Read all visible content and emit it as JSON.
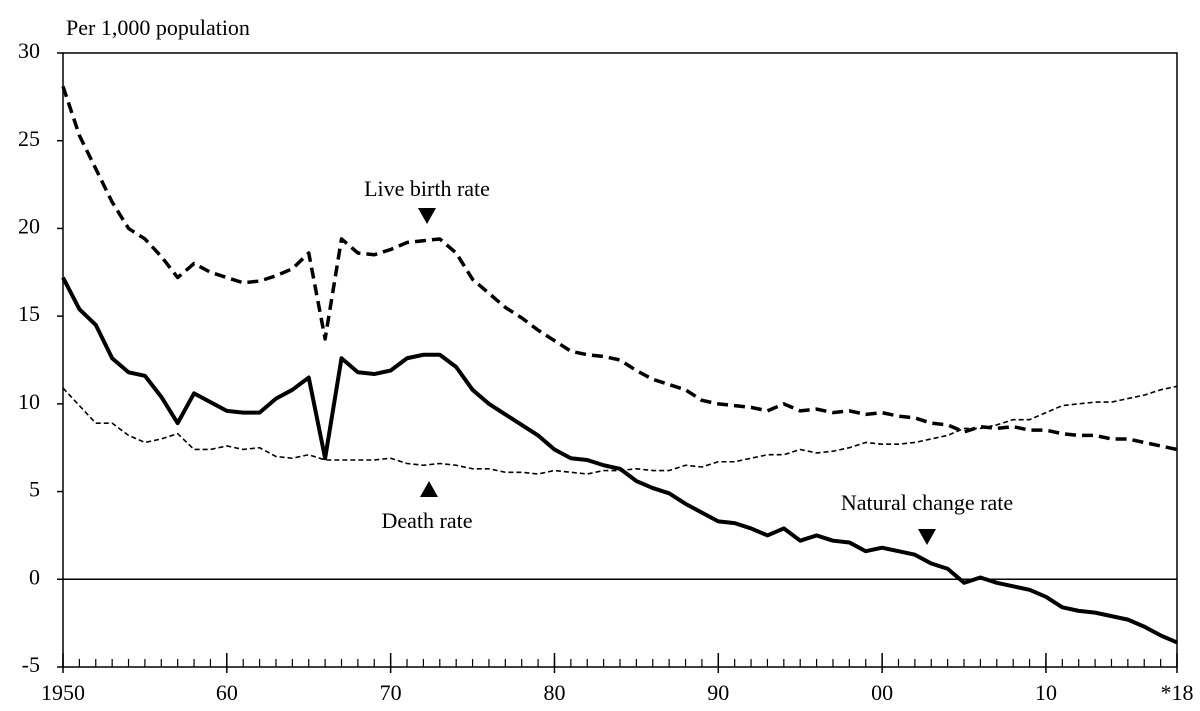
{
  "chart_data": {
    "type": "line",
    "ylabel": "Per 1,000 population",
    "x": [
      1950,
      1951,
      1952,
      1953,
      1954,
      1955,
      1956,
      1957,
      1958,
      1959,
      1960,
      1961,
      1962,
      1963,
      1964,
      1965,
      1966,
      1967,
      1968,
      1969,
      1970,
      1971,
      1972,
      1973,
      1974,
      1975,
      1976,
      1977,
      1978,
      1979,
      1980,
      1981,
      1982,
      1983,
      1984,
      1985,
      1986,
      1987,
      1988,
      1989,
      1990,
      1991,
      1992,
      1993,
      1994,
      1995,
      1996,
      1997,
      1998,
      1999,
      2000,
      2001,
      2002,
      2003,
      2004,
      2005,
      2006,
      2007,
      2008,
      2009,
      2010,
      2011,
      2012,
      2013,
      2014,
      2015,
      2016,
      2017,
      2018
    ],
    "series": [
      {
        "name": "Live birth rate",
        "color": "#000000",
        "line_style": "dashed",
        "values": [
          28.1,
          25.3,
          23.4,
          21.5,
          20.0,
          19.4,
          18.4,
          17.2,
          18.0,
          17.5,
          17.2,
          16.9,
          17.0,
          17.3,
          17.7,
          18.6,
          13.7,
          19.4,
          18.6,
          18.5,
          18.8,
          19.2,
          19.3,
          19.4,
          18.6,
          17.1,
          16.3,
          15.5,
          14.9,
          14.2,
          13.6,
          13.0,
          12.8,
          12.7,
          12.5,
          11.9,
          11.4,
          11.1,
          10.8,
          10.2,
          10.0,
          9.9,
          9.8,
          9.6,
          10.0,
          9.6,
          9.7,
          9.5,
          9.6,
          9.4,
          9.5,
          9.3,
          9.2,
          8.9,
          8.8,
          8.4,
          8.7,
          8.6,
          8.7,
          8.5,
          8.5,
          8.3,
          8.2,
          8.2,
          8.0,
          8.0,
          7.8,
          7.6,
          7.4
        ]
      },
      {
        "name": "Death rate",
        "color": "#000000",
        "line_style": "dotted",
        "values": [
          10.9,
          9.9,
          8.9,
          8.9,
          8.2,
          7.8,
          8.0,
          8.3,
          7.4,
          7.4,
          7.6,
          7.4,
          7.5,
          7.0,
          6.9,
          7.1,
          6.8,
          6.8,
          6.8,
          6.8,
          6.9,
          6.6,
          6.5,
          6.6,
          6.5,
          6.3,
          6.3,
          6.1,
          6.1,
          6.0,
          6.2,
          6.1,
          6.0,
          6.2,
          6.2,
          6.3,
          6.2,
          6.2,
          6.5,
          6.4,
          6.7,
          6.7,
          6.9,
          7.1,
          7.1,
          7.4,
          7.2,
          7.3,
          7.5,
          7.8,
          7.7,
          7.7,
          7.8,
          8.0,
          8.2,
          8.6,
          8.6,
          8.8,
          9.1,
          9.1,
          9.5,
          9.9,
          10.0,
          10.1,
          10.1,
          10.3,
          10.5,
          10.8,
          11.0
        ]
      },
      {
        "name": "Natural change rate",
        "color": "#000000",
        "line_style": "solid",
        "values": [
          17.2,
          15.4,
          14.5,
          12.6,
          11.8,
          11.6,
          10.4,
          8.9,
          10.6,
          10.1,
          9.6,
          9.5,
          9.5,
          10.3,
          10.8,
          11.5,
          6.9,
          12.6,
          11.8,
          11.7,
          11.9,
          12.6,
          12.8,
          12.8,
          12.1,
          10.8,
          10.0,
          9.4,
          8.8,
          8.2,
          7.4,
          6.9,
          6.8,
          6.5,
          6.3,
          5.6,
          5.2,
          4.9,
          4.3,
          3.8,
          3.3,
          3.2,
          2.9,
          2.5,
          2.9,
          2.2,
          2.5,
          2.2,
          2.1,
          1.6,
          1.8,
          1.6,
          1.4,
          0.9,
          0.6,
          -0.2,
          0.1,
          -0.2,
          -0.4,
          -0.6,
          -1.0,
          -1.6,
          -1.8,
          -1.9,
          -2.1,
          -2.3,
          -2.7,
          -3.2,
          -3.6
        ]
      }
    ],
    "xlim": [
      1950,
      2018
    ],
    "xticks": [
      {
        "value": 1950,
        "label": "1950"
      },
      {
        "value": 1960,
        "label": "60"
      },
      {
        "value": 1970,
        "label": "70"
      },
      {
        "value": 1980,
        "label": "80"
      },
      {
        "value": 1990,
        "label": "90"
      },
      {
        "value": 2000,
        "label": "00"
      },
      {
        "value": 2010,
        "label": "10"
      },
      {
        "value": 2018,
        "label": "*18"
      }
    ],
    "ylim": [
      -5,
      30
    ],
    "yticks": [
      -5,
      0,
      5,
      10,
      15,
      20,
      25,
      30
    ],
    "zero_line": true
  }
}
